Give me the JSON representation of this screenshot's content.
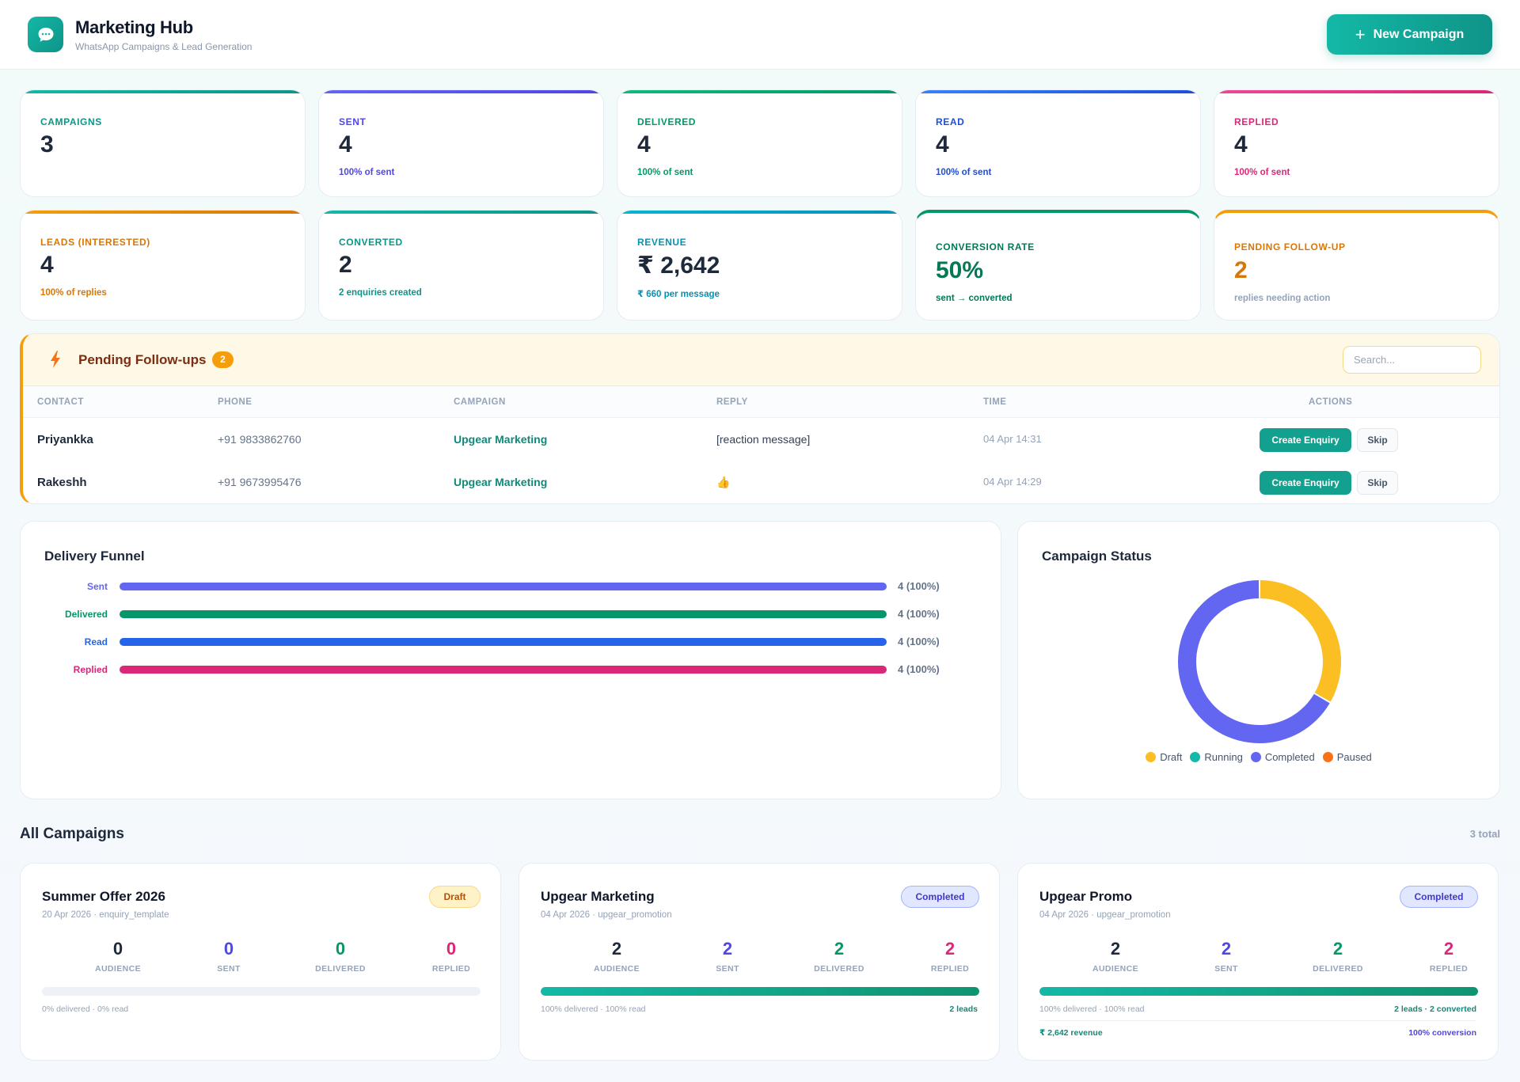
{
  "header": {
    "title": "Marketing Hub",
    "subtitle": "WhatsApp Campaigns & Lead Generation",
    "new_campaign_label": "New Campaign"
  },
  "stats": [
    {
      "label": "CAMPAIGNS",
      "value": "3",
      "sub": "",
      "color": "#0d9488",
      "bar": "#14b8a6"
    },
    {
      "label": "SENT",
      "value": "4",
      "sub": "100% of sent",
      "color": "#4f46e5",
      "bar": "#6366f1"
    },
    {
      "label": "DELIVERED",
      "value": "4",
      "sub": "100% of sent",
      "color": "#059669",
      "bar": "#10b981"
    },
    {
      "label": "READ",
      "value": "4",
      "sub": "100% of sent",
      "color": "#1d4ed8",
      "bar": "#3b82f6"
    },
    {
      "label": "REPLIED",
      "value": "4",
      "sub": "100% of sent",
      "color": "#db2777",
      "bar": "#ec4899"
    },
    {
      "label": "LEADS (INTERESTED)",
      "value": "4",
      "sub": "100% of replies",
      "color": "#d97706",
      "bar": "#f59e0b"
    },
    {
      "label": "CONVERTED",
      "value": "2",
      "sub": "2 enquiries created",
      "color": "#0d9488",
      "bar": "#14b8a6"
    },
    {
      "label": "REVENUE",
      "value": "₹ 2,642",
      "sub": "₹ 660 per message",
      "color": "#0891b2",
      "bar": "#06b6d4"
    },
    {
      "label": "CONVERSION RATE",
      "value": "50%",
      "sub": "sent → converted",
      "color": "#047857",
      "bar": "#059669"
    },
    {
      "label": "PENDING FOLLOW-UP",
      "value": "2",
      "sub": "replies needing action",
      "color": "#d97706",
      "bar": "#f59e0b"
    }
  ],
  "followups": {
    "title": "Pending Follow-ups",
    "count": "2",
    "search_placeholder": "Search...",
    "columns": [
      "CONTACT",
      "PHONE",
      "CAMPAIGN",
      "REPLY",
      "TIME",
      "ACTIONS"
    ],
    "rows": [
      {
        "contact": "Priyankka",
        "phone": "+91 9833862760",
        "campaign": "Upgear Marketing",
        "reply": "[reaction message]",
        "time": "04 Apr 14:31"
      },
      {
        "contact": "Rakeshh",
        "phone": "+91 9673995476",
        "campaign": "Upgear Marketing",
        "reply": "👍",
        "time": "04 Apr 14:29"
      }
    ],
    "enquiry_label": "Create Enquiry",
    "skip_label": "Skip"
  },
  "funnel": {
    "title": "Delivery Funnel",
    "rows": [
      {
        "label": "Sent",
        "value": "4 (100%)",
        "fraction": 1.0,
        "color": "#6366f1"
      },
      {
        "label": "Delivered",
        "value": "4 (100%)",
        "fraction": 1.0,
        "color": "#059669"
      },
      {
        "label": "Read",
        "value": "4 (100%)",
        "fraction": 1.0,
        "color": "#2563eb"
      },
      {
        "label": "Replied",
        "value": "4 (100%)",
        "fraction": 1.0,
        "color": "#db2777"
      }
    ]
  },
  "chart_data": {
    "type": "pie",
    "title": "Campaign Status",
    "categories": [
      "Draft",
      "Running",
      "Completed",
      "Paused"
    ],
    "values": [
      1,
      0,
      2,
      0
    ],
    "colors": [
      "#fbbf24",
      "#14b8a6",
      "#6366f1",
      "#f97316"
    ],
    "legend": "bottom"
  },
  "campaigns": {
    "title": "All Campaigns",
    "count": "3 total",
    "metric_labels": [
      "AUDIENCE",
      "SENT",
      "DELIVERED",
      "REPLIED"
    ],
    "items": [
      {
        "name": "Summer Offer 2026",
        "meta": "20 Apr 2026 · enquiry_template",
        "status": "Draft",
        "metrics": [
          "0",
          "0",
          "0",
          "0"
        ],
        "delivered_fraction": 0.0,
        "foot": "0% delivered · 0% read",
        "foot_right": "",
        "revenue": "",
        "conversion": ""
      },
      {
        "name": "Upgear Marketing",
        "meta": "04 Apr 2026 · upgear_promotion",
        "status": "Completed",
        "metrics": [
          "2",
          "2",
          "2",
          "2"
        ],
        "delivered_fraction": 1.0,
        "foot": "100% delivered · 100% read",
        "foot_right": "2 leads",
        "revenue": "",
        "conversion": ""
      },
      {
        "name": "Upgear Promo",
        "meta": "04 Apr 2026 · upgear_promotion",
        "status": "Completed",
        "metrics": [
          "2",
          "2",
          "2",
          "2"
        ],
        "delivered_fraction": 1.0,
        "foot": "100% delivered · 100% read",
        "foot_right": "2 leads · 2 converted",
        "revenue": "₹ 2,642 revenue",
        "conversion": "100% conversion"
      }
    ]
  }
}
